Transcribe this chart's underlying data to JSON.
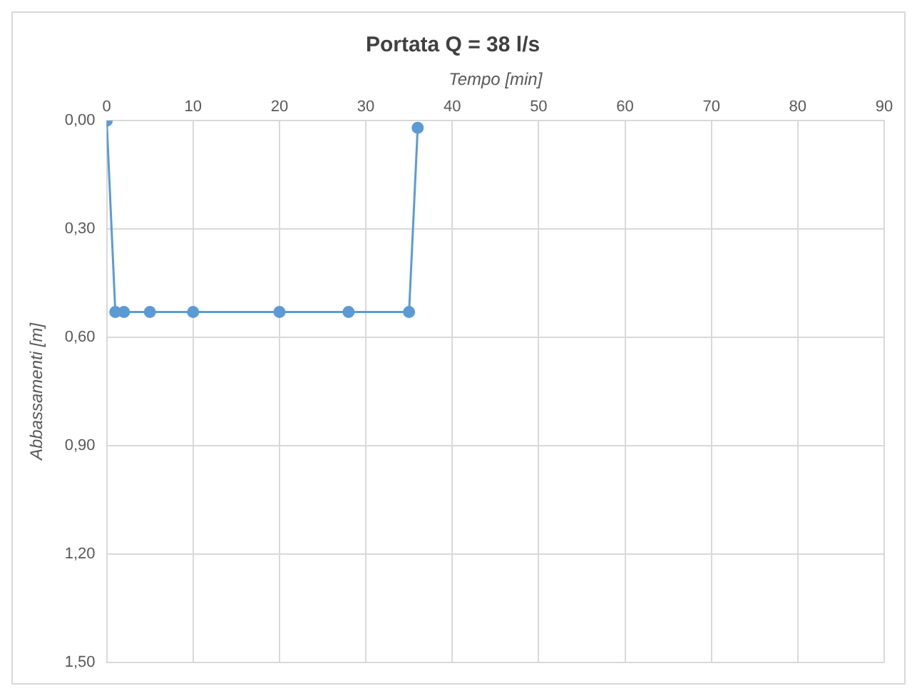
{
  "chart_data": {
    "type": "line",
    "title": "Portata Q = 38 l/s",
    "xlabel": "Tempo [min]",
    "ylabel": "Abbassamenti [m]",
    "x": [
      0,
      1,
      2,
      5,
      10,
      20,
      28,
      35,
      36
    ],
    "series": [
      {
        "color": "#5b9bd5",
        "values": [
          0,
          0.53,
          0.53,
          0.53,
          0.53,
          0.53,
          0.53,
          0.53,
          0.02
        ]
      }
    ],
    "xlim": [
      0,
      90
    ],
    "xticks": [
      0,
      10,
      20,
      30,
      40,
      50,
      60,
      70,
      80,
      90
    ],
    "ylim": [
      1.5,
      0
    ],
    "yticks": [
      {
        "value": 0,
        "label": "0,00"
      },
      {
        "value": 0.3,
        "label": "0,30"
      },
      {
        "value": 0.6,
        "label": "0,60"
      },
      {
        "value": 0.9,
        "label": "0,90"
      },
      {
        "value": 1.2,
        "label": "1,20"
      },
      {
        "value": 1.5,
        "label": "1,50"
      }
    ],
    "grid": true,
    "marker": "circle",
    "line_style": "solid",
    "legend": false
  }
}
